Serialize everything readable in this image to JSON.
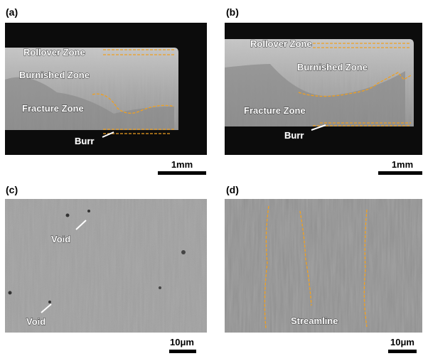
{
  "panels": [
    {
      "label": "(a)",
      "annotations": [
        "Rollover Zone",
        "Burnished Zone",
        "Fracture Zone",
        "Burr"
      ],
      "scale_bar": "1mm"
    },
    {
      "label": "(b)",
      "annotations": [
        "Rollover Zone",
        "Burnished Zone",
        "Fracture Zone",
        "Burr"
      ],
      "scale_bar": "1mm"
    },
    {
      "label": "(c)",
      "annotations": [
        "Void",
        "Void"
      ],
      "scale_bar": "10μm"
    },
    {
      "label": "(d)",
      "annotations": [
        "Streamline"
      ],
      "scale_bar": "10μm"
    }
  ]
}
